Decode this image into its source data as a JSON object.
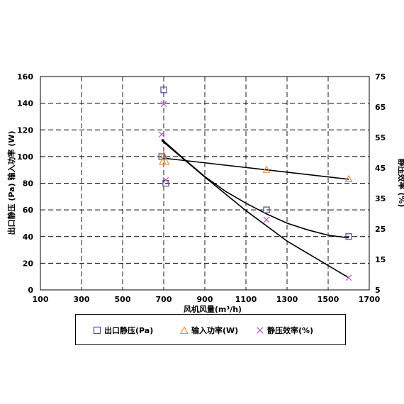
{
  "chart_data": {
    "type": "scatter",
    "xlabel": "风机风量(m³/h)",
    "ylabel_left": "出口静压 (Pa) 输入功率 (W)",
    "ylabel_right": "静压效率 (%)",
    "xlim": [
      100,
      1700
    ],
    "ylim_left": [
      0,
      160
    ],
    "ylim_right": [
      5,
      75
    ],
    "x_ticks": [
      "100",
      "300",
      "500",
      "700",
      "900",
      "1100",
      "1300",
      "1500",
      "1700"
    ],
    "y_ticks_left": [
      "0",
      "20",
      "40",
      "60",
      "80",
      "100",
      "120",
      "140",
      "160"
    ],
    "y_ticks_right": [
      "5",
      "15",
      "25",
      "35",
      "45",
      "55",
      "65",
      "75"
    ],
    "grid": true,
    "legend_position": "bottom",
    "series": [
      {
        "name": "出口静压(Pa)",
        "axis": "left",
        "marker": "square",
        "color": "#4a4a9a",
        "points": [
          [
            690,
            100
          ],
          [
            700,
            150
          ],
          [
            710,
            80
          ],
          [
            1200,
            60
          ],
          [
            1600,
            40
          ]
        ],
        "trend": [
          [
            690,
            113
          ],
          [
            800,
            98
          ],
          [
            900,
            85
          ],
          [
            1000,
            74
          ],
          [
            1100,
            65
          ],
          [
            1200,
            57
          ],
          [
            1300,
            50
          ],
          [
            1400,
            45
          ],
          [
            1500,
            41
          ],
          [
            1600,
            39
          ]
        ]
      },
      {
        "name": "输入功率(W)",
        "axis": "left",
        "marker": "triangle",
        "color": "#e0904a",
        "points": [
          [
            695,
            96
          ],
          [
            700,
            101
          ],
          [
            710,
            96
          ],
          [
            1200,
            90
          ],
          [
            1600,
            83
          ]
        ],
        "trend": [
          [
            690,
            99
          ],
          [
            1600,
            83
          ]
        ]
      },
      {
        "name": "静压效率(%)",
        "axis": "right",
        "marker": "x",
        "color": "#c060c0",
        "points": [
          [
            690,
            56
          ],
          [
            700,
            66
          ],
          [
            710,
            41
          ],
          [
            1200,
            28
          ],
          [
            1600,
            9
          ]
        ],
        "trend": [
          [
            690,
            54
          ],
          [
            900,
            42
          ],
          [
            1100,
            31
          ],
          [
            1300,
            21
          ],
          [
            1600,
            9
          ]
        ]
      }
    ]
  }
}
